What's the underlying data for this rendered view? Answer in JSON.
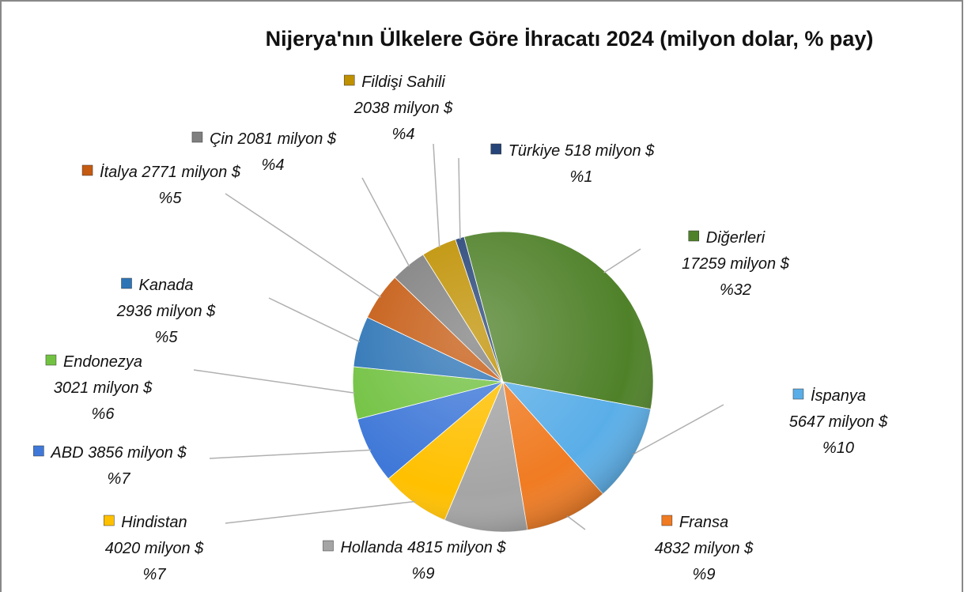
{
  "chart_data": {
    "type": "pie",
    "title": "Nijerya'nın Ülkelere Göre İhracatı 2024 (milyon dolar, % pay)",
    "categories": [
      "Diğerleri",
      "İspanya",
      "Fransa",
      "Hollanda",
      "Hindistan",
      "ABD",
      "Endonezya",
      "Kanada",
      "İtalya",
      "Çin",
      "Fildişi Sahili",
      "Türkiye"
    ],
    "values": [
      17259,
      5647,
      4832,
      4815,
      4020,
      3856,
      3021,
      2936,
      2771,
      2081,
      2038,
      518
    ],
    "value_labels": [
      "17259 milyon $",
      "5647 milyon $",
      "4832 milyon $",
      "4815 milyon $",
      "4020 milyon $",
      "3856 milyon $",
      "3021 milyon $",
      "2936 milyon $",
      "2771 milyon $",
      "2081 milyon $",
      "2038 milyon $",
      "518 milyon $"
    ],
    "shares": [
      32,
      10,
      9,
      9,
      7,
      7,
      6,
      5,
      5,
      4,
      4,
      1
    ],
    "share_labels": [
      "%32",
      "%10",
      "%9",
      "%9",
      "%7",
      "%7",
      "%6",
      "%5",
      "%5",
      "%4",
      "%4",
      "%1"
    ],
    "colors": [
      "#4f8129",
      "#5aaee8",
      "#f07b22",
      "#a5a5a5",
      "#ffc000",
      "#3f78d8",
      "#72c242",
      "#2e75b6",
      "#c55a11",
      "#7f7f7f",
      "#bf9000",
      "#264478"
    ]
  }
}
